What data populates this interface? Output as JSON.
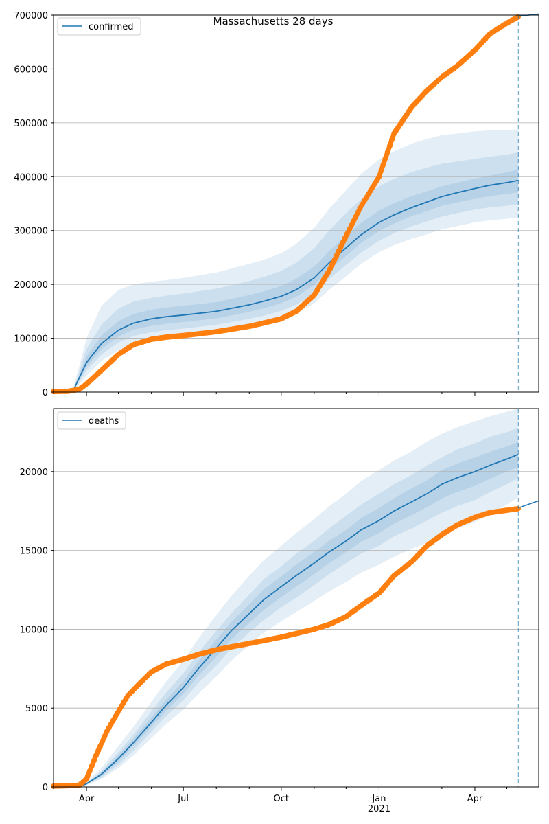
{
  "chart_data": [
    {
      "type": "line",
      "title": "Massachusetts 28 days",
      "xlabel": "",
      "ylabel": "",
      "xlim": [
        "2020-03-01",
        "2021-05-31"
      ],
      "ylim": [
        0,
        700000
      ],
      "yticks": [
        0,
        100000,
        200000,
        300000,
        400000,
        500000,
        600000,
        700000
      ],
      "grid": "horizontal",
      "legend": {
        "position": "top-left",
        "entries": [
          "confirmed"
        ]
      },
      "forecast_start": "2021-05-12",
      "series": [
        {
          "name": "confirmed",
          "color": "#1f77b4",
          "kind": "model-median",
          "x": [
            "2020-03-01",
            "2020-03-15",
            "2020-03-20",
            "2020-04-01",
            "2020-04-15",
            "2020-05-01",
            "2020-05-15",
            "2020-06-01",
            "2020-06-15",
            "2020-07-01",
            "2020-08-01",
            "2020-09-01",
            "2020-09-15",
            "2020-10-01",
            "2020-10-15",
            "2020-11-01",
            "2020-11-15",
            "2020-12-01",
            "2020-12-15",
            "2021-01-01",
            "2021-01-15",
            "2021-02-01",
            "2021-02-15",
            "2021-03-01",
            "2021-03-15",
            "2021-04-01",
            "2021-04-15",
            "2021-05-01",
            "2021-05-12"
          ],
          "y": [
            0,
            1000,
            5000,
            55000,
            90000,
            115000,
            128000,
            136000,
            140000,
            143000,
            150000,
            162000,
            169000,
            178000,
            190000,
            212000,
            240000,
            268000,
            292000,
            315000,
            329000,
            343000,
            353000,
            363000,
            370000,
            378000,
            384000,
            389000,
            393000
          ],
          "bands": [
            {
              "label": "",
              "lower": [
                0,
                800,
                3000,
                30000,
                58000,
                78000,
                89000,
                96000,
                100000,
                103000,
                110000,
                120000,
                126000,
                134000,
                145000,
                165000,
                190000,
                215000,
                238000,
                260000,
                273000,
                285000,
                293000,
                302000,
                308000,
                315000,
                319000,
                322000,
                325000
              ],
              "upper": [
                0,
                1500,
                9000,
                100000,
                160000,
                190000,
                200000,
                205000,
                208000,
                212000,
                222000,
                238000,
                246000,
                258000,
                275000,
                305000,
                340000,
                375000,
                405000,
                432000,
                447000,
                462000,
                470000,
                477000,
                480000,
                484000,
                486000,
                487000,
                488000
              ]
            },
            {
              "label": "",
              "lower": [
                0,
                900,
                4000,
                40000,
                70000,
                92000,
                104000,
                111000,
                115000,
                118000,
                125000,
                136000,
                142000,
                151000,
                162000,
                183000,
                210000,
                236000,
                259000,
                281000,
                295000,
                308000,
                317000,
                326000,
                332000,
                339000,
                343000,
                346000,
                349000
              ],
              "upper": [
                0,
                1300,
                7000,
                80000,
                125000,
                155000,
                168000,
                175000,
                179000,
                183000,
                192000,
                206000,
                214000,
                225000,
                240000,
                267000,
                300000,
                332000,
                358000,
                382000,
                396000,
                409000,
                417000,
                424000,
                428000,
                433000,
                437000,
                441000,
                445000
              ]
            },
            {
              "label": "",
              "lower": [
                0,
                950,
                4500,
                47000,
                80000,
                103000,
                116000,
                123000,
                127000,
                130000,
                137000,
                149000,
                156000,
                165000,
                177000,
                199000,
                226000,
                253000,
                277000,
                299000,
                313000,
                327000,
                336000,
                346000,
                352000,
                359000,
                364000,
                368000,
                371000
              ],
              "upper": [
                0,
                1150,
                6000,
                66000,
                105000,
                132000,
                145000,
                153000,
                157000,
                160000,
                167000,
                180000,
                187000,
                197000,
                210000,
                233000,
                262000,
                291000,
                314000,
                337000,
                351000,
                364000,
                373000,
                382000,
                389000,
                396000,
                402000,
                408000,
                414000
              ]
            }
          ]
        },
        {
          "name": "",
          "color": "#ff7f0e",
          "kind": "observed",
          "x": [
            "2020-03-01",
            "2020-03-15",
            "2020-03-25",
            "2020-04-01",
            "2020-04-15",
            "2020-05-01",
            "2020-05-15",
            "2020-06-01",
            "2020-06-15",
            "2020-07-01",
            "2020-08-01",
            "2020-09-01",
            "2020-10-01",
            "2020-10-15",
            "2020-11-01",
            "2020-11-15",
            "2020-12-01",
            "2020-12-15",
            "2021-01-01",
            "2021-01-15",
            "2021-02-01",
            "2021-02-15",
            "2021-03-01",
            "2021-03-15",
            "2021-04-01",
            "2021-04-15",
            "2021-05-01",
            "2021-05-12"
          ],
          "y": [
            1000,
            1500,
            5000,
            15000,
            40000,
            70000,
            88000,
            98000,
            102000,
            105000,
            112000,
            122000,
            136000,
            150000,
            180000,
            225000,
            290000,
            345000,
            400000,
            480000,
            530000,
            560000,
            585000,
            605000,
            635000,
            665000,
            685000,
            697000
          ]
        },
        {
          "name": "",
          "color": "#1f77b4",
          "kind": "forecast",
          "x": [
            "2021-05-12",
            "2021-05-31"
          ],
          "y": [
            698000,
            702000
          ]
        }
      ]
    },
    {
      "type": "line",
      "title": "",
      "xlabel": "",
      "ylabel": "",
      "xlim": [
        "2020-03-01",
        "2021-05-31"
      ],
      "ylim": [
        0,
        24000
      ],
      "yticks": [
        0,
        5000,
        10000,
        15000,
        20000
      ],
      "xticks": [
        {
          "date": "2020-04-01",
          "label": "Apr",
          "sublabel": ""
        },
        {
          "date": "2020-07-01",
          "label": "Jul",
          "sublabel": ""
        },
        {
          "date": "2020-10-01",
          "label": "Oct",
          "sublabel": ""
        },
        {
          "date": "2021-01-01",
          "label": "Jan",
          "sublabel": "2021"
        },
        {
          "date": "2021-04-01",
          "label": "Apr",
          "sublabel": ""
        }
      ],
      "grid": "horizontal",
      "legend": {
        "position": "top-left",
        "entries": [
          "deaths"
        ]
      },
      "forecast_start": "2021-05-12",
      "series": [
        {
          "name": "deaths",
          "color": "#1f77b4",
          "kind": "model-median",
          "x": [
            "2020-03-01",
            "2020-03-25",
            "2020-04-01",
            "2020-04-15",
            "2020-05-01",
            "2020-05-15",
            "2020-06-01",
            "2020-06-15",
            "2020-07-01",
            "2020-07-15",
            "2020-08-01",
            "2020-08-15",
            "2020-09-01",
            "2020-09-15",
            "2020-10-01",
            "2020-10-15",
            "2020-11-01",
            "2020-11-15",
            "2020-12-01",
            "2020-12-15",
            "2021-01-01",
            "2021-01-15",
            "2021-02-01",
            "2021-02-15",
            "2021-03-01",
            "2021-03-15",
            "2021-04-01",
            "2021-04-15",
            "2021-05-01",
            "2021-05-12"
          ],
          "y": [
            0,
            0,
            200,
            800,
            1800,
            2800,
            4100,
            5200,
            6300,
            7500,
            8800,
            9900,
            11000,
            11900,
            12700,
            13400,
            14200,
            14900,
            15600,
            16300,
            16900,
            17500,
            18100,
            18600,
            19200,
            19600,
            20000,
            20400,
            20800,
            21100
          ],
          "bands": [
            {
              "label": "",
              "lower": [
                0,
                0,
                100,
                500,
                1200,
                2000,
                3100,
                4000,
                4900,
                5900,
                7000,
                8000,
                9000,
                9800,
                10500,
                11100,
                11800,
                12400,
                13000,
                13600,
                14100,
                14600,
                15100,
                15500,
                16000,
                16400,
                16800,
                17300,
                17900,
                18400
              ],
              "upper": [
                0,
                0,
                300,
                1200,
                2600,
                3800,
                5400,
                6700,
                8000,
                9400,
                10900,
                12100,
                13400,
                14400,
                15300,
                16100,
                17000,
                17800,
                18600,
                19400,
                20100,
                20700,
                21300,
                21900,
                22400,
                22800,
                23200,
                23500,
                23800,
                24000
              ]
            },
            {
              "label": "",
              "lower": [
                0,
                0,
                150,
                600,
                1400,
                2300,
                3500,
                4500,
                5500,
                6600,
                7700,
                8800,
                9800,
                10600,
                11400,
                12000,
                12800,
                13500,
                14200,
                14800,
                15300,
                15900,
                16400,
                16900,
                17400,
                17800,
                18200,
                18700,
                19200,
                19600
              ],
              "upper": [
                0,
                0,
                250,
                1000,
                2200,
                3300,
                4800,
                6000,
                7200,
                8500,
                9900,
                11000,
                12200,
                13200,
                14000,
                14800,
                15600,
                16400,
                17200,
                17900,
                18600,
                19200,
                19800,
                20400,
                20900,
                21400,
                21800,
                22200,
                22500,
                22800
              ]
            },
            {
              "label": "",
              "lower": [
                0,
                0,
                180,
                700,
                1600,
                2600,
                3800,
                4850,
                5900,
                7050,
                8250,
                9350,
                10400,
                11250,
                12050,
                12700,
                13500,
                14200,
                14900,
                15550,
                16100,
                16700,
                17250,
                17750,
                18300,
                18700,
                19100,
                19550,
                20000,
                20300
              ],
              "upper": [
                0,
                0,
                220,
                900,
                2000,
                3050,
                4400,
                5550,
                6700,
                7950,
                9350,
                10450,
                11600,
                12550,
                13350,
                14100,
                14900,
                15600,
                16300,
                17050,
                17700,
                18300,
                18950,
                19450,
                20100,
                20500,
                20900,
                21250,
                21600,
                21900
              ]
            }
          ]
        },
        {
          "name": "",
          "color": "#ff7f0e",
          "kind": "observed",
          "x": [
            "2020-03-01",
            "2020-03-25",
            "2020-04-01",
            "2020-04-10",
            "2020-04-20",
            "2020-05-01",
            "2020-05-10",
            "2020-05-20",
            "2020-06-01",
            "2020-06-15",
            "2020-07-01",
            "2020-07-15",
            "2020-08-01",
            "2020-09-01",
            "2020-10-01",
            "2020-11-01",
            "2020-11-15",
            "2020-12-01",
            "2020-12-15",
            "2021-01-01",
            "2021-01-15",
            "2021-02-01",
            "2021-02-15",
            "2021-03-01",
            "2021-03-15",
            "2021-04-01",
            "2021-04-15",
            "2021-05-01",
            "2021-05-12"
          ],
          "y": [
            50,
            100,
            500,
            2000,
            3500,
            4800,
            5800,
            6500,
            7300,
            7800,
            8100,
            8400,
            8700,
            9100,
            9500,
            10000,
            10300,
            10800,
            11500,
            12300,
            13400,
            14300,
            15300,
            16000,
            16600,
            17100,
            17400,
            17550,
            17650
          ]
        },
        {
          "name": "",
          "color": "#1f77b4",
          "kind": "forecast",
          "x": [
            "2021-05-12",
            "2021-05-31"
          ],
          "y": [
            17700,
            18150
          ]
        }
      ]
    }
  ]
}
